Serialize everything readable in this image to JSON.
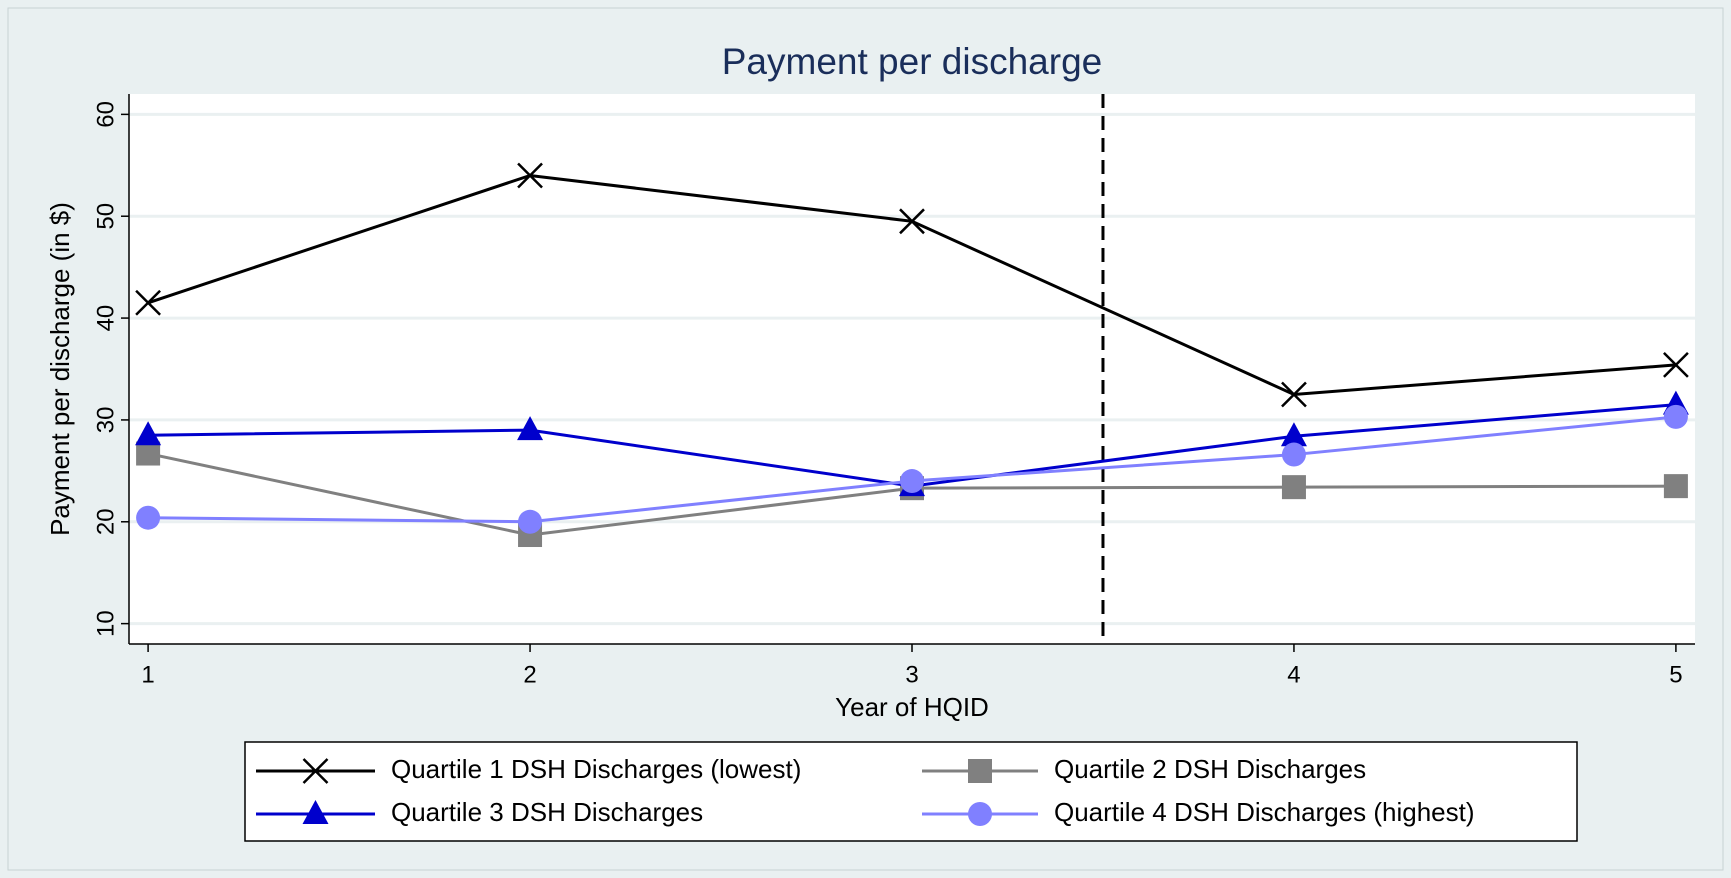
{
  "chart_data": {
    "type": "line",
    "title": "Payment per discharge",
    "x_label": "Year of HQID",
    "y_label": "Payment per discharge (in $)",
    "x": [
      1,
      2,
      3,
      4,
      5
    ],
    "series": [
      {
        "name": "Quartile 1 DSH Discharges (lowest)",
        "color": "#000000",
        "marker": "x",
        "values": [
          41.5,
          54,
          49.5,
          32.5,
          35.4
        ]
      },
      {
        "name": "Quartile 2 DSH Discharges",
        "color": "#808080",
        "marker": "square",
        "values": [
          26.7,
          18.7,
          23.3,
          23.4,
          23.5
        ]
      },
      {
        "name": "Quartile 3 DSH Discharges",
        "color": "#0000cc",
        "marker": "triangle",
        "values": [
          28.5,
          29,
          23.5,
          28.4,
          31.5
        ]
      },
      {
        "name": "Quartile 4 DSH Discharges (highest)",
        "color": "#8080ff",
        "marker": "circle",
        "values": [
          20.4,
          20,
          24,
          26.6,
          30.3
        ]
      }
    ],
    "xlim": [
      0.95,
      5.05
    ],
    "ylim": [
      8,
      62
    ],
    "xticks": [
      1,
      2,
      3,
      4,
      5
    ],
    "yticks": [
      10,
      20,
      30,
      40,
      50,
      60
    ],
    "grid": true,
    "reference_line_x": 3.5,
    "legend_position": "bottom"
  }
}
